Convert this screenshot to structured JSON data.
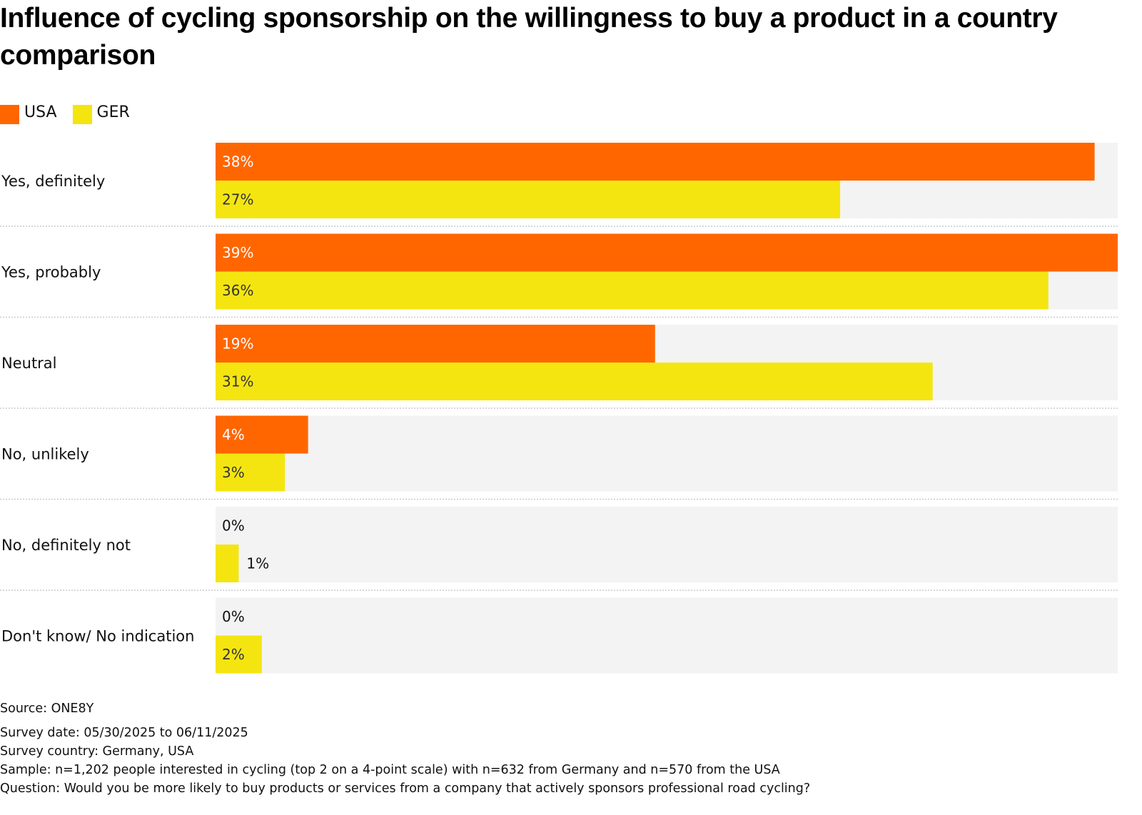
{
  "chart_data": {
    "type": "bar",
    "orientation": "horizontal",
    "title": "Influence of cycling sponsorship on the willingness to buy a product in a country comparison",
    "categories": [
      "Yes, definitely",
      "Yes, probably",
      "Neutral",
      "No, unlikely",
      "No, definitely not",
      "Don't know/ No indication"
    ],
    "series": [
      {
        "name": "USA",
        "color": "#ff6600",
        "label_color": "#ffffff",
        "values": [
          38,
          39,
          19,
          4,
          0,
          0
        ],
        "labels": [
          "38%",
          "39%",
          "19%",
          "4%",
          "0%",
          "0%"
        ]
      },
      {
        "name": "GER",
        "color": "#f4e511",
        "label_color": "#333333",
        "values": [
          27,
          36,
          31,
          3,
          1,
          2
        ],
        "labels": [
          "27%",
          "36%",
          "31%",
          "3%",
          "1%",
          "2%"
        ]
      }
    ],
    "xlim": [
      0,
      39
    ],
    "unit": "%",
    "legend": "top-left",
    "grid": false,
    "track_color": "#f3f3f3",
    "separator_color": "#cccccc"
  },
  "footer": {
    "source": "Source: ONE8Y",
    "survey_date": "Survey date: 05/30/2025 to 06/11/2025",
    "survey_country": "Survey country: Germany, USA",
    "sample": "Sample: n=1,202 people interested in cycling (top 2 on a 4-point scale) with n=632 from Germany and n=570 from the USA",
    "question": "Question: Would you be more likely to buy products or services from a company that actively sponsors professional road cycling?"
  }
}
